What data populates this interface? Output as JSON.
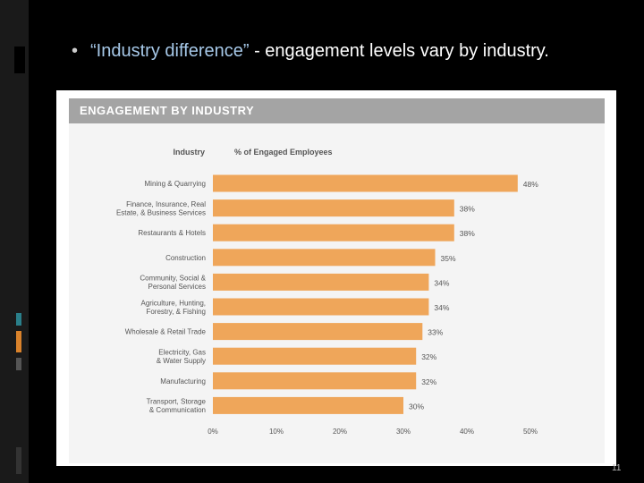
{
  "slide": {
    "bullet_quote": "“Industry difference”",
    "bullet_rest": " - engagement levels vary by industry.",
    "page_number": "11"
  },
  "colors": {
    "bar": "#efa65a",
    "header_bg": "#a4a4a4",
    "bullet_accent": "#a6c8e8"
  },
  "chart_data": {
    "type": "bar",
    "orientation": "horizontal",
    "title": "ENGAGEMENT BY INDUSTRY",
    "category_header": "Industry",
    "value_header": "% of Engaged Employees",
    "categories": [
      [
        "Mining & Quarrying"
      ],
      [
        "Finance, Insurance, Real",
        "Estate, & Business Services"
      ],
      [
        "Restaurants & Hotels"
      ],
      [
        "Construction"
      ],
      [
        "Community, Social &",
        "Personal Services"
      ],
      [
        "Agriculture, Hunting,",
        "Forestry, & Fishing"
      ],
      [
        "Wholesale & Retail Trade"
      ],
      [
        "Electricity, Gas",
        "& Water Supply"
      ],
      [
        "Manufacturing"
      ],
      [
        "Transport, Storage",
        "& Communication"
      ]
    ],
    "values": [
      48,
      38,
      38,
      35,
      34,
      34,
      33,
      32,
      32,
      30
    ],
    "value_labels": [
      "48%",
      "38%",
      "38%",
      "35%",
      "34%",
      "34%",
      "33%",
      "32%",
      "32%",
      "30%"
    ],
    "xlim": [
      0,
      50
    ],
    "xticks": [
      "0%",
      "10%",
      "20%",
      "30%",
      "40%",
      "50%"
    ],
    "grid": false,
    "legend": "none"
  }
}
